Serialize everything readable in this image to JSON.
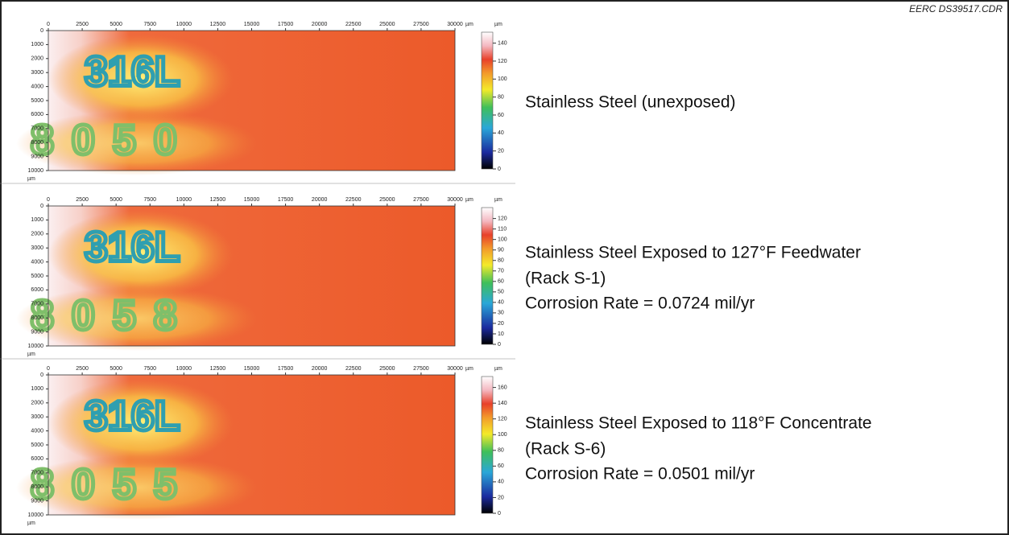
{
  "header": {
    "file_code": "EERC DS39517.CDR"
  },
  "panels": [
    {
      "x_ticks": [
        "0",
        "2500",
        "5000",
        "7500",
        "10000",
        "12500",
        "15000",
        "17500",
        "20000",
        "22500",
        "25000",
        "27500",
        "30000"
      ],
      "x_unit": "µm",
      "y_ticks": [
        "0",
        "1000",
        "2000",
        "3000",
        "4000",
        "5000",
        "6000",
        "7000",
        "8000",
        "9000",
        "10000"
      ],
      "y_unit": "µm",
      "colorbar": {
        "unit": "µm",
        "ticks": [
          "0",
          "20",
          "40",
          "60",
          "80",
          "100",
          "120",
          "140"
        ]
      },
      "engraving": {
        "line1": "316L",
        "line2": "8050"
      },
      "caption": [
        "Stainless Steel (unexposed)"
      ]
    },
    {
      "x_ticks": [
        "0",
        "2500",
        "5000",
        "7500",
        "10000",
        "12500",
        "15000",
        "17500",
        "20000",
        "22500",
        "25000",
        "27500",
        "30000"
      ],
      "x_unit": "µm",
      "y_ticks": [
        "0",
        "1000",
        "2000",
        "3000",
        "4000",
        "5000",
        "6000",
        "7000",
        "8000",
        "9000",
        "10000"
      ],
      "y_unit": "µm",
      "colorbar": {
        "unit": "µm",
        "ticks": [
          "0",
          "10",
          "20",
          "30",
          "40",
          "50",
          "60",
          "70",
          "80",
          "90",
          "100",
          "110",
          "120"
        ]
      },
      "engraving": {
        "line1": "316L",
        "line2": "8058"
      },
      "caption": [
        "Stainless Steel Exposed to 127°F Feedwater",
        "(Rack S-1)",
        "Corrosion Rate = 0.0724 mil/yr"
      ]
    },
    {
      "x_ticks": [
        "0",
        "2500",
        "5000",
        "7500",
        "10000",
        "12500",
        "15000",
        "17500",
        "20000",
        "22500",
        "25000",
        "27500",
        "30000"
      ],
      "x_unit": "µm",
      "y_ticks": [
        "0",
        "1000",
        "2000",
        "3000",
        "4000",
        "5000",
        "6000",
        "7000",
        "8000",
        "9000",
        "10000"
      ],
      "y_unit": "µm",
      "colorbar": {
        "unit": "µm",
        "ticks": [
          "0",
          "20",
          "40",
          "60",
          "80",
          "100",
          "120",
          "140",
          "160"
        ]
      },
      "engraving": {
        "line1": "316L",
        "line2": "8055"
      },
      "caption": [
        "Stainless Steel Exposed to 118°F Concentrate",
        "(Rack S-6)",
        "Corrosion Rate = 0.0501 mil/yr"
      ]
    }
  ]
}
